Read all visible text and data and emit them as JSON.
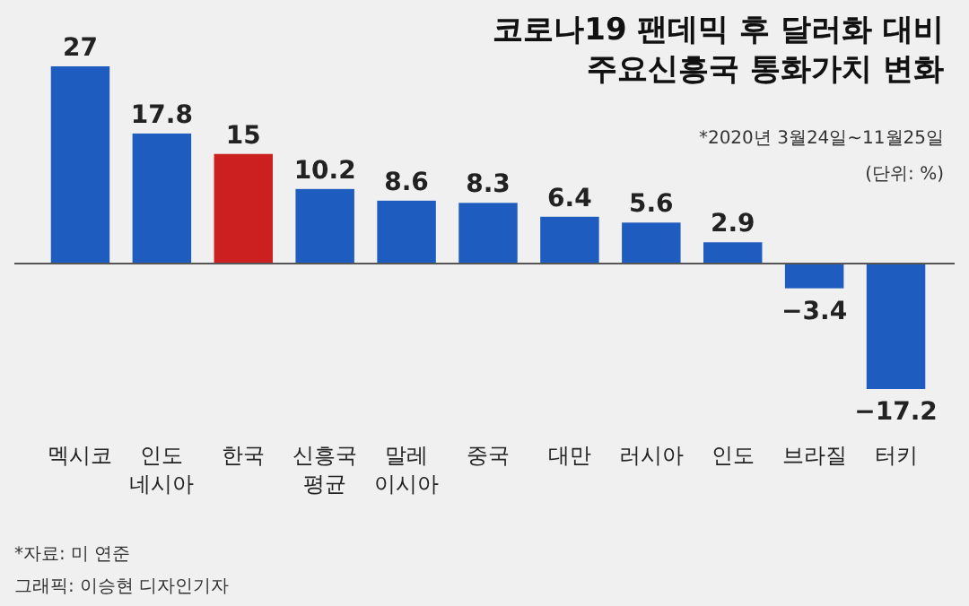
{
  "chart_data": {
    "type": "bar",
    "title": "코로나19 팬데믹 후 달러화 대비\n주요신흥국 통화가치 변화",
    "subtitle": "*2020년 3월24일~11월25일",
    "annotations": [
      "(단위: %)",
      "*자료: 미 연준",
      "그래픽: 이승현 디자인기자"
    ],
    "categories": [
      "멕시코",
      "인도\n네시아",
      "한국",
      "신흥국\n평균",
      "말레\n이시아",
      "중국",
      "대만",
      "러시아",
      "인도",
      "브라질",
      "터키"
    ],
    "values": [
      27,
      17.8,
      15,
      10.2,
      8.6,
      8.3,
      6.4,
      5.6,
      2.9,
      -3.4,
      -17.2
    ],
    "colors": [
      "#1f5cc0",
      "#1f5cc0",
      "#cc1f1f",
      "#1f5cc0",
      "#1f5cc0",
      "#1f5cc0",
      "#1f5cc0",
      "#1f5cc0",
      "#1f5cc0",
      "#1f5cc0",
      "#1f5cc0"
    ],
    "data_labels": true
  }
}
